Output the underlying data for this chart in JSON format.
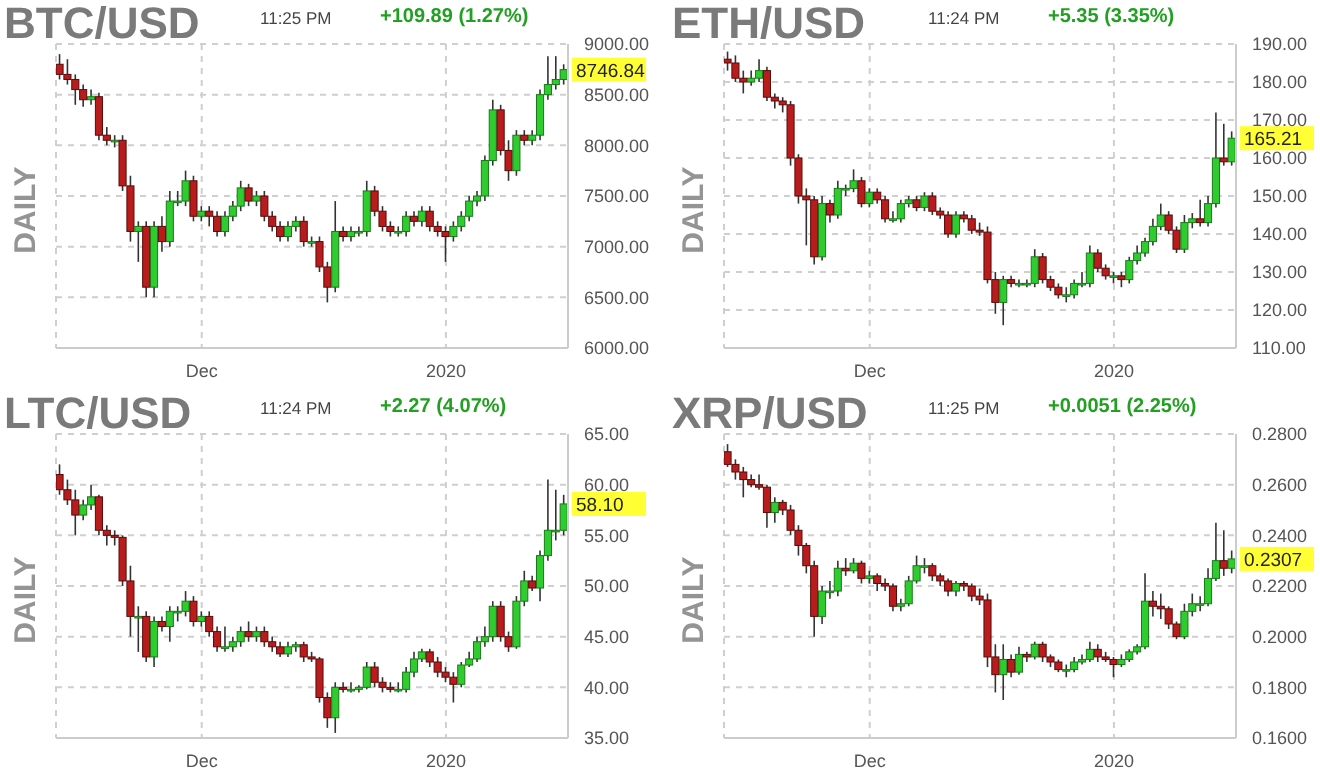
{
  "chart_data": [
    {
      "type": "candlestick",
      "title": "BTC/USD",
      "subtitle": "11:25 PM",
      "ylabel": "DAILY",
      "annotations": [
        "+109.89 (1.27%)",
        {
          "text": "8746.84",
          "x": "2020-01-16",
          "y": 8746.84
        }
      ],
      "grid": true,
      "x": [
        "2019-11-13",
        "2019-11-14",
        "2019-11-15",
        "2019-11-16",
        "2019-11-17",
        "2019-11-18",
        "2019-11-19",
        "2019-11-20",
        "2019-11-21",
        "2019-11-22",
        "2019-11-23",
        "2019-11-24",
        "2019-11-25",
        "2019-11-26",
        "2019-11-27",
        "2019-11-28",
        "2019-11-29",
        "2019-11-30",
        "2019-12-01",
        "2019-12-02",
        "2019-12-03",
        "2019-12-04",
        "2019-12-05",
        "2019-12-06",
        "2019-12-07",
        "2019-12-08",
        "2019-12-09",
        "2019-12-10",
        "2019-12-11",
        "2019-12-12",
        "2019-12-13",
        "2019-12-14",
        "2019-12-15",
        "2019-12-16",
        "2019-12-17",
        "2019-12-18",
        "2019-12-19",
        "2019-12-20",
        "2019-12-21",
        "2019-12-22",
        "2019-12-23",
        "2019-12-24",
        "2019-12-25",
        "2019-12-26",
        "2019-12-27",
        "2019-12-28",
        "2019-12-29",
        "2019-12-30",
        "2019-12-31",
        "2020-01-01",
        "2020-01-02",
        "2020-01-03",
        "2020-01-04",
        "2020-01-05",
        "2020-01-06",
        "2020-01-07",
        "2020-01-08",
        "2020-01-09",
        "2020-01-10",
        "2020-01-11",
        "2020-01-12",
        "2020-01-13",
        "2020-01-14",
        "2020-01-15",
        "2020-01-16"
      ],
      "ohlc": [
        [
          8800,
          8900,
          8650,
          8700
        ],
        [
          8700,
          8850,
          8600,
          8650
        ],
        [
          8650,
          8700,
          8400,
          8550
        ],
        [
          8550,
          8600,
          8380,
          8450
        ],
        [
          8450,
          8550,
          8400,
          8480
        ],
        [
          8480,
          8520,
          8050,
          8100
        ],
        [
          8100,
          8180,
          8000,
          8050
        ],
        [
          8050,
          8100,
          7980,
          8050
        ],
        [
          8050,
          8100,
          7550,
          7600
        ],
        [
          7600,
          7700,
          7050,
          7150
        ],
        [
          7150,
          7250,
          6850,
          7200
        ],
        [
          7200,
          7250,
          6500,
          6600
        ],
        [
          6600,
          7250,
          6500,
          7200
        ],
        [
          7200,
          7300,
          6950,
          7050
        ],
        [
          7050,
          7550,
          7000,
          7450
        ],
        [
          7450,
          7550,
          7400,
          7450
        ],
        [
          7450,
          7750,
          7400,
          7650
        ],
        [
          7650,
          7700,
          7250,
          7300
        ],
        [
          7300,
          7400,
          7250,
          7350
        ],
        [
          7350,
          7400,
          7200,
          7300
        ],
        [
          7300,
          7350,
          7100,
          7150
        ],
        [
          7150,
          7350,
          7100,
          7300
        ],
        [
          7300,
          7450,
          7250,
          7400
        ],
        [
          7400,
          7650,
          7350,
          7580
        ],
        [
          7580,
          7620,
          7400,
          7450
        ],
        [
          7450,
          7550,
          7400,
          7500
        ],
        [
          7500,
          7550,
          7250,
          7300
        ],
        [
          7300,
          7350,
          7150,
          7200
        ],
        [
          7200,
          7250,
          7050,
          7100
        ],
        [
          7100,
          7250,
          7050,
          7200
        ],
        [
          7200,
          7300,
          7150,
          7250
        ],
        [
          7250,
          7300,
          7000,
          7050
        ],
        [
          7050,
          7100,
          7000,
          7050
        ],
        [
          7050,
          7100,
          6750,
          6800
        ],
        [
          6800,
          6850,
          6450,
          6600
        ],
        [
          6600,
          7450,
          6550,
          7150
        ],
        [
          7150,
          7200,
          7050,
          7100
        ],
        [
          7100,
          7200,
          7050,
          7150
        ],
        [
          7150,
          7200,
          7100,
          7150
        ],
        [
          7150,
          7650,
          7100,
          7550
        ],
        [
          7550,
          7600,
          7300,
          7350
        ],
        [
          7350,
          7400,
          7150,
          7200
        ],
        [
          7200,
          7250,
          7100,
          7150
        ],
        [
          7150,
          7200,
          7100,
          7150
        ],
        [
          7150,
          7350,
          7100,
          7300
        ],
        [
          7300,
          7350,
          7200,
          7250
        ],
        [
          7250,
          7400,
          7200,
          7350
        ],
        [
          7350,
          7400,
          7150,
          7200
        ],
        [
          7200,
          7250,
          7100,
          7150
        ],
        [
          7150,
          7200,
          6850,
          7100
        ],
        [
          7100,
          7250,
          7050,
          7200
        ],
        [
          7200,
          7350,
          7150,
          7300
        ],
        [
          7300,
          7500,
          7250,
          7450
        ],
        [
          7450,
          7550,
          7400,
          7500
        ],
        [
          7500,
          7900,
          7450,
          7850
        ],
        [
          7850,
          8450,
          7800,
          8350
        ],
        [
          8350,
          8400,
          7900,
          7950
        ],
        [
          7950,
          8050,
          7650,
          7750
        ],
        [
          7750,
          8150,
          7700,
          8100
        ],
        [
          8100,
          8150,
          8000,
          8050
        ],
        [
          8050,
          8150,
          8000,
          8100
        ],
        [
          8100,
          8550,
          8050,
          8500
        ],
        [
          8500,
          8880,
          8450,
          8600
        ],
        [
          8600,
          8880,
          8550,
          8650
        ],
        [
          8650,
          8800,
          8600,
          8746.84
        ]
      ],
      "xlim": [
        "2019-11-12T12:00",
        "2020-01-16T12:00"
      ],
      "xticks": [
        {
          "value": "2019-12-01",
          "label": "Dec"
        },
        {
          "value": "2020-01-01",
          "label": "2020"
        }
      ],
      "ylim": [
        6000,
        9000
      ],
      "yticks": [
        {
          "value": 6000,
          "label": "6000.00"
        },
        {
          "value": 6500,
          "label": "6500.00"
        },
        {
          "value": 7000,
          "label": "7000.00"
        },
        {
          "value": 7500,
          "label": "7500.00"
        },
        {
          "value": 8000,
          "label": "8000.00"
        },
        {
          "value": 8500,
          "label": "8500.00"
        },
        {
          "value": 9000,
          "label": "9000.00"
        }
      ]
    },
    {
      "type": "candlestick",
      "title": "ETH/USD",
      "subtitle": "11:24 PM",
      "ylabel": "DAILY",
      "annotations": [
        "+5.35 (3.35%)",
        {
          "text": "165.21",
          "x": "2020-01-16",
          "y": 165.21
        }
      ],
      "grid": true,
      "x": [
        "2019-11-13",
        "2019-11-14",
        "2019-11-15",
        "2019-11-16",
        "2019-11-17",
        "2019-11-18",
        "2019-11-19",
        "2019-11-20",
        "2019-11-21",
        "2019-11-22",
        "2019-11-23",
        "2019-11-24",
        "2019-11-25",
        "2019-11-26",
        "2019-11-27",
        "2019-11-28",
        "2019-11-29",
        "2019-11-30",
        "2019-12-01",
        "2019-12-02",
        "2019-12-03",
        "2019-12-04",
        "2019-12-05",
        "2019-12-06",
        "2019-12-07",
        "2019-12-08",
        "2019-12-09",
        "2019-12-10",
        "2019-12-11",
        "2019-12-12",
        "2019-12-13",
        "2019-12-14",
        "2019-12-15",
        "2019-12-16",
        "2019-12-17",
        "2019-12-18",
        "2019-12-19",
        "2019-12-20",
        "2019-12-21",
        "2019-12-22",
        "2019-12-23",
        "2019-12-24",
        "2019-12-25",
        "2019-12-26",
        "2019-12-27",
        "2019-12-28",
        "2019-12-29",
        "2019-12-30",
        "2019-12-31",
        "2020-01-01",
        "2020-01-02",
        "2020-01-03",
        "2020-01-04",
        "2020-01-05",
        "2020-01-06",
        "2020-01-07",
        "2020-01-08",
        "2020-01-09",
        "2020-01-10",
        "2020-01-11",
        "2020-01-12",
        "2020-01-13",
        "2020-01-14",
        "2020-01-15",
        "2020-01-16"
      ],
      "ohlc": [
        [
          186,
          188,
          183,
          185
        ],
        [
          185,
          187,
          180,
          181
        ],
        [
          181,
          183,
          177,
          180
        ],
        [
          180,
          183,
          179,
          181
        ],
        [
          181,
          186,
          180,
          183
        ],
        [
          183,
          184,
          175,
          176
        ],
        [
          176,
          177,
          173,
          175
        ],
        [
          175,
          176,
          172,
          174
        ],
        [
          174,
          175,
          158,
          160
        ],
        [
          160,
          161,
          148,
          150
        ],
        [
          150,
          152,
          137,
          149
        ],
        [
          149,
          150,
          132,
          134
        ],
        [
          134,
          150,
          133,
          148
        ],
        [
          148,
          149,
          143,
          145
        ],
        [
          145,
          154,
          144,
          152
        ],
        [
          152,
          153,
          150,
          152
        ],
        [
          152,
          157,
          151,
          154
        ],
        [
          154,
          155,
          147,
          148
        ],
        [
          148,
          152,
          147,
          151
        ],
        [
          151,
          152,
          148,
          149
        ],
        [
          149,
          150,
          143,
          144
        ],
        [
          144,
          146,
          143,
          144
        ],
        [
          144,
          149,
          143,
          148
        ],
        [
          148,
          150,
          147,
          149
        ],
        [
          149,
          150,
          146,
          147
        ],
        [
          147,
          151,
          146,
          150
        ],
        [
          150,
          151,
          145,
          146
        ],
        [
          146,
          147,
          144,
          145
        ],
        [
          145,
          146,
          139,
          140
        ],
        [
          140,
          146,
          139,
          145
        ],
        [
          145,
          146,
          143,
          144
        ],
        [
          144,
          145,
          140,
          141
        ],
        [
          141,
          143,
          139.5,
          140.5
        ],
        [
          140.5,
          142,
          127,
          128
        ],
        [
          128,
          130,
          119,
          122
        ],
        [
          122,
          129,
          116,
          128
        ],
        [
          128,
          129,
          126,
          127
        ],
        [
          127,
          128,
          126,
          127
        ],
        [
          127,
          128,
          126,
          127
        ],
        [
          127,
          136,
          126,
          134
        ],
        [
          134,
          135,
          127,
          128
        ],
        [
          128,
          129,
          125,
          126
        ],
        [
          126,
          127,
          123,
          124
        ],
        [
          124,
          126,
          122,
          124
        ],
        [
          124,
          128,
          123,
          127
        ],
        [
          127,
          130,
          126,
          127
        ],
        [
          127,
          137,
          126,
          135
        ],
        [
          135,
          136,
          130,
          131
        ],
        [
          131,
          132,
          128,
          129
        ],
        [
          129,
          130,
          127,
          129
        ],
        [
          129,
          130,
          126,
          128
        ],
        [
          128,
          134,
          127,
          133
        ],
        [
          133,
          137,
          132,
          135
        ],
        [
          135,
          139,
          134,
          138
        ],
        [
          138,
          144,
          137,
          142
        ],
        [
          142,
          148,
          141,
          145
        ],
        [
          145,
          146,
          140,
          141
        ],
        [
          141,
          142,
          135,
          136
        ],
        [
          136,
          145,
          135,
          143
        ],
        [
          143,
          145.5,
          141.5,
          144
        ],
        [
          144,
          149,
          142,
          143
        ],
        [
          143,
          150,
          142,
          148
        ],
        [
          148,
          172,
          147,
          160
        ],
        [
          160,
          169,
          158,
          159
        ],
        [
          159,
          167,
          158,
          165.21
        ]
      ],
      "xlim": [
        "2019-11-12T12:00",
        "2020-01-16T12:00"
      ],
      "xticks": [
        {
          "value": "2019-12-01",
          "label": "Dec"
        },
        {
          "value": "2020-01-01",
          "label": "2020"
        }
      ],
      "ylim": [
        110,
        190
      ],
      "yticks": [
        {
          "value": 110,
          "label": "110.00"
        },
        {
          "value": 120,
          "label": "120.00"
        },
        {
          "value": 130,
          "label": "130.00"
        },
        {
          "value": 140,
          "label": "140.00"
        },
        {
          "value": 150,
          "label": "150.00"
        },
        {
          "value": 160,
          "label": "160.00"
        },
        {
          "value": 170,
          "label": "170.00"
        },
        {
          "value": 180,
          "label": "180.00"
        },
        {
          "value": 190,
          "label": "190.00"
        }
      ]
    },
    {
      "type": "candlestick",
      "title": "LTC/USD",
      "subtitle": "11:24 PM",
      "ylabel": "DAILY",
      "annotations": [
        "+2.27 (4.07%)",
        {
          "text": "58.10",
          "x": "2020-01-16",
          "y": 58.1
        }
      ],
      "grid": true,
      "x": [
        "2019-11-13",
        "2019-11-14",
        "2019-11-15",
        "2019-11-16",
        "2019-11-17",
        "2019-11-18",
        "2019-11-19",
        "2019-11-20",
        "2019-11-21",
        "2019-11-22",
        "2019-11-23",
        "2019-11-24",
        "2019-11-25",
        "2019-11-26",
        "2019-11-27",
        "2019-11-28",
        "2019-11-29",
        "2019-11-30",
        "2019-12-01",
        "2019-12-02",
        "2019-12-03",
        "2019-12-04",
        "2019-12-05",
        "2019-12-06",
        "2019-12-07",
        "2019-12-08",
        "2019-12-09",
        "2019-12-10",
        "2019-12-11",
        "2019-12-12",
        "2019-12-13",
        "2019-12-14",
        "2019-12-15",
        "2019-12-16",
        "2019-12-17",
        "2019-12-18",
        "2019-12-19",
        "2019-12-20",
        "2019-12-21",
        "2019-12-22",
        "2019-12-23",
        "2019-12-24",
        "2019-12-25",
        "2019-12-26",
        "2019-12-27",
        "2019-12-28",
        "2019-12-29",
        "2019-12-30",
        "2019-12-31",
        "2020-01-01",
        "2020-01-02",
        "2020-01-03",
        "2020-01-04",
        "2020-01-05",
        "2020-01-06",
        "2020-01-07",
        "2020-01-08",
        "2020-01-09",
        "2020-01-10",
        "2020-01-11",
        "2020-01-12",
        "2020-01-13",
        "2020-01-14",
        "2020-01-15",
        "2020-01-16"
      ],
      "ohlc": [
        [
          61,
          62,
          59,
          59.5
        ],
        [
          59.5,
          60.5,
          58,
          58.5
        ],
        [
          58.5,
          59.5,
          55,
          57
        ],
        [
          57,
          58.5,
          56.5,
          58
        ],
        [
          58,
          60,
          57.5,
          58.8
        ],
        [
          58.8,
          59,
          55,
          55.5
        ],
        [
          55.5,
          56,
          54,
          55
        ],
        [
          55,
          55.5,
          54,
          54.8
        ],
        [
          54.8,
          55,
          50,
          50.5
        ],
        [
          50.5,
          52,
          45,
          47
        ],
        [
          47,
          48,
          43.5,
          47
        ],
        [
          47,
          47.5,
          42.5,
          43
        ],
        [
          43,
          47,
          42,
          46.5
        ],
        [
          46.5,
          47,
          45.5,
          46
        ],
        [
          46,
          48,
          44.5,
          47.5
        ],
        [
          47.5,
          48,
          46.5,
          47.5
        ],
        [
          47.5,
          49.5,
          47,
          48.5
        ],
        [
          48.5,
          49,
          46,
          46.5
        ],
        [
          46.5,
          47.5,
          46,
          47
        ],
        [
          47,
          47.5,
          45,
          45.5
        ],
        [
          45.5,
          46,
          43.5,
          44
        ],
        [
          44,
          46,
          43.5,
          44
        ],
        [
          44,
          45,
          43.5,
          44.5
        ],
        [
          44.5,
          46,
          44,
          45.5
        ],
        [
          45.5,
          46.5,
          44.5,
          45
        ],
        [
          45,
          46,
          44.5,
          45.5
        ],
        [
          45.5,
          46,
          44,
          44.5
        ],
        [
          44.5,
          45,
          43.5,
          44
        ],
        [
          44,
          44.5,
          43,
          43.3
        ],
        [
          43.3,
          44.5,
          43,
          44
        ],
        [
          44,
          44.5,
          43.5,
          44.2
        ],
        [
          44.2,
          44.5,
          42.5,
          43
        ],
        [
          43,
          43.5,
          42.5,
          42.8
        ],
        [
          42.8,
          43,
          38.5,
          39
        ],
        [
          39,
          39.5,
          36,
          37
        ],
        [
          37,
          40.5,
          35.5,
          40
        ],
        [
          40,
          40.5,
          39.5,
          39.8
        ],
        [
          39.8,
          40.5,
          39.5,
          39.8
        ],
        [
          39.8,
          40.2,
          39.5,
          40
        ],
        [
          40,
          42.5,
          39.8,
          42
        ],
        [
          42,
          42.5,
          40,
          40.5
        ],
        [
          40.5,
          41,
          39.5,
          40
        ],
        [
          40,
          40.5,
          39.5,
          39.8
        ],
        [
          39.8,
          40.5,
          39.5,
          39.8
        ],
        [
          39.8,
          42,
          39.5,
          41.5
        ],
        [
          41.5,
          43.5,
          41,
          42.8
        ],
        [
          42.8,
          43.8,
          42.5,
          43.5
        ],
        [
          43.5,
          43.8,
          42,
          42.5
        ],
        [
          42.5,
          43,
          41,
          41.5
        ],
        [
          41.5,
          42,
          40.5,
          41
        ],
        [
          41,
          41.5,
          38.5,
          40.3
        ],
        [
          40.3,
          42.5,
          40,
          42.2
        ],
        [
          42.2,
          43.5,
          42,
          42.8
        ],
        [
          42.8,
          45,
          42.5,
          44.5
        ],
        [
          44.5,
          46,
          44,
          45
        ],
        [
          45,
          48.5,
          44.5,
          48
        ],
        [
          48,
          48.5,
          44.5,
          45
        ],
        [
          45,
          45.5,
          43.5,
          44
        ],
        [
          44,
          49,
          43.8,
          48.5
        ],
        [
          48.5,
          51.5,
          48,
          50.5
        ],
        [
          50.5,
          51,
          49.5,
          49.8
        ],
        [
          49.8,
          53.5,
          48.5,
          53
        ],
        [
          53,
          60.5,
          52.5,
          55.5
        ],
        [
          55.5,
          59.5,
          54.5,
          55.5
        ],
        [
          55.5,
          59,
          55,
          58.1
        ]
      ],
      "xlim": [
        "2019-11-12T12:00",
        "2020-01-16T12:00"
      ],
      "xticks": [
        {
          "value": "2019-12-01",
          "label": "Dec"
        },
        {
          "value": "2020-01-01",
          "label": "2020"
        }
      ],
      "ylim": [
        35,
        65
      ],
      "yticks": [
        {
          "value": 35,
          "label": "35.00"
        },
        {
          "value": 40,
          "label": "40.00"
        },
        {
          "value": 45,
          "label": "45.00"
        },
        {
          "value": 50,
          "label": "50.00"
        },
        {
          "value": 55,
          "label": "55.00"
        },
        {
          "value": 60,
          "label": "60.00"
        },
        {
          "value": 65,
          "label": "65.00"
        }
      ]
    },
    {
      "type": "candlestick",
      "title": "XRP/USD",
      "subtitle": "11:25 PM",
      "ylabel": "DAILY",
      "annotations": [
        "+0.0051 (2.25%)",
        {
          "text": "0.2307",
          "x": "2020-01-16",
          "y": 0.2307
        }
      ],
      "grid": true,
      "x": [
        "2019-11-13",
        "2019-11-14",
        "2019-11-15",
        "2019-11-16",
        "2019-11-17",
        "2019-11-18",
        "2019-11-19",
        "2019-11-20",
        "2019-11-21",
        "2019-11-22",
        "2019-11-23",
        "2019-11-24",
        "2019-11-25",
        "2019-11-26",
        "2019-11-27",
        "2019-11-28",
        "2019-11-29",
        "2019-11-30",
        "2019-12-01",
        "2019-12-02",
        "2019-12-03",
        "2019-12-04",
        "2019-12-05",
        "2019-12-06",
        "2019-12-07",
        "2019-12-08",
        "2019-12-09",
        "2019-12-10",
        "2019-12-11",
        "2019-12-12",
        "2019-12-13",
        "2019-12-14",
        "2019-12-15",
        "2019-12-16",
        "2019-12-17",
        "2019-12-18",
        "2019-12-19",
        "2019-12-20",
        "2019-12-21",
        "2019-12-22",
        "2019-12-23",
        "2019-12-24",
        "2019-12-25",
        "2019-12-26",
        "2019-12-27",
        "2019-12-28",
        "2019-12-29",
        "2019-12-30",
        "2019-12-31",
        "2020-01-01",
        "2020-01-02",
        "2020-01-03",
        "2020-01-04",
        "2020-01-05",
        "2020-01-06",
        "2020-01-07",
        "2020-01-08",
        "2020-01-09",
        "2020-01-10",
        "2020-01-11",
        "2020-01-12",
        "2020-01-13",
        "2020-01-14",
        "2020-01-15",
        "2020-01-16"
      ],
      "ohlc": [
        [
          0.273,
          0.276,
          0.267,
          0.268
        ],
        [
          0.268,
          0.27,
          0.262,
          0.265
        ],
        [
          0.265,
          0.267,
          0.255,
          0.262
        ],
        [
          0.262,
          0.264,
          0.259,
          0.26
        ],
        [
          0.26,
          0.264,
          0.258,
          0.259
        ],
        [
          0.259,
          0.26,
          0.243,
          0.249
        ],
        [
          0.249,
          0.255,
          0.245,
          0.253
        ],
        [
          0.253,
          0.254,
          0.248,
          0.25
        ],
        [
          0.25,
          0.252,
          0.24,
          0.242
        ],
        [
          0.242,
          0.244,
          0.232,
          0.236
        ],
        [
          0.236,
          0.237,
          0.225,
          0.228
        ],
        [
          0.228,
          0.23,
          0.2,
          0.208
        ],
        [
          0.208,
          0.22,
          0.205,
          0.218
        ],
        [
          0.218,
          0.222,
          0.215,
          0.218
        ],
        [
          0.218,
          0.23,
          0.216,
          0.227
        ],
        [
          0.227,
          0.231,
          0.224,
          0.226
        ],
        [
          0.226,
          0.231,
          0.225,
          0.229
        ],
        [
          0.229,
          0.23,
          0.221,
          0.223
        ],
        [
          0.223,
          0.226,
          0.221,
          0.224
        ],
        [
          0.224,
          0.225,
          0.218,
          0.221
        ],
        [
          0.221,
          0.223,
          0.218,
          0.22
        ],
        [
          0.22,
          0.221,
          0.21,
          0.212
        ],
        [
          0.212,
          0.215,
          0.21,
          0.213
        ],
        [
          0.213,
          0.224,
          0.212,
          0.222
        ],
        [
          0.222,
          0.232,
          0.221,
          0.228
        ],
        [
          0.228,
          0.231,
          0.225,
          0.228
        ],
        [
          0.228,
          0.229,
          0.222,
          0.224
        ],
        [
          0.224,
          0.225,
          0.22,
          0.222
        ],
        [
          0.222,
          0.223,
          0.216,
          0.218
        ],
        [
          0.218,
          0.222,
          0.216,
          0.221
        ],
        [
          0.221,
          0.222,
          0.218,
          0.22
        ],
        [
          0.22,
          0.221,
          0.214,
          0.216
        ],
        [
          0.216,
          0.219,
          0.2125,
          0.2145
        ],
        [
          0.2145,
          0.217,
          0.188,
          0.192
        ],
        [
          0.192,
          0.197,
          0.178,
          0.185
        ],
        [
          0.185,
          0.197,
          0.175,
          0.191
        ],
        [
          0.191,
          0.193,
          0.184,
          0.186
        ],
        [
          0.186,
          0.196,
          0.185,
          0.193
        ],
        [
          0.193,
          0.194,
          0.19,
          0.192
        ],
        [
          0.192,
          0.198,
          0.191,
          0.197
        ],
        [
          0.197,
          0.198,
          0.19,
          0.192
        ],
        [
          0.192,
          0.193,
          0.188,
          0.19
        ],
        [
          0.19,
          0.191,
          0.186,
          0.187
        ],
        [
          0.187,
          0.189,
          0.184,
          0.187
        ],
        [
          0.187,
          0.192,
          0.186,
          0.19
        ],
        [
          0.19,
          0.193,
          0.189,
          0.191
        ],
        [
          0.191,
          0.198,
          0.19,
          0.195
        ],
        [
          0.195,
          0.197,
          0.19,
          0.192
        ],
        [
          0.192,
          0.194,
          0.19,
          0.191
        ],
        [
          0.191,
          0.192,
          0.184,
          0.189
        ],
        [
          0.189,
          0.193,
          0.188,
          0.191
        ],
        [
          0.191,
          0.195,
          0.19,
          0.194
        ],
        [
          0.194,
          0.197,
          0.193,
          0.196
        ],
        [
          0.196,
          0.225,
          0.195,
          0.214
        ],
        [
          0.214,
          0.218,
          0.208,
          0.212
        ],
        [
          0.212,
          0.217,
          0.207,
          0.211
        ],
        [
          0.211,
          0.212,
          0.203,
          0.205
        ],
        [
          0.205,
          0.206,
          0.199,
          0.2
        ],
        [
          0.2,
          0.213,
          0.199,
          0.21
        ],
        [
          0.21,
          0.217,
          0.208,
          0.213
        ],
        [
          0.213,
          0.216,
          0.21,
          0.213
        ],
        [
          0.213,
          0.227,
          0.212,
          0.223
        ],
        [
          0.223,
          0.245,
          0.222,
          0.23
        ],
        [
          0.23,
          0.242,
          0.224,
          0.227
        ],
        [
          0.227,
          0.234,
          0.225,
          0.2307
        ]
      ],
      "xlim": [
        "2019-11-12T12:00",
        "2020-01-16T12:00"
      ],
      "xticks": [
        {
          "value": "2019-12-01",
          "label": "Dec"
        },
        {
          "value": "2020-01-01",
          "label": "2020"
        }
      ],
      "ylim": [
        0.16,
        0.28
      ],
      "yticks": [
        {
          "value": 0.16,
          "label": "0.1600"
        },
        {
          "value": 0.18,
          "label": "0.1800"
        },
        {
          "value": 0.2,
          "label": "0.2000"
        },
        {
          "value": 0.22,
          "label": "0.2200"
        },
        {
          "value": 0.24,
          "label": "0.2400"
        },
        {
          "value": 0.26,
          "label": "0.2600"
        },
        {
          "value": 0.28,
          "label": "0.2800"
        }
      ]
    }
  ]
}
